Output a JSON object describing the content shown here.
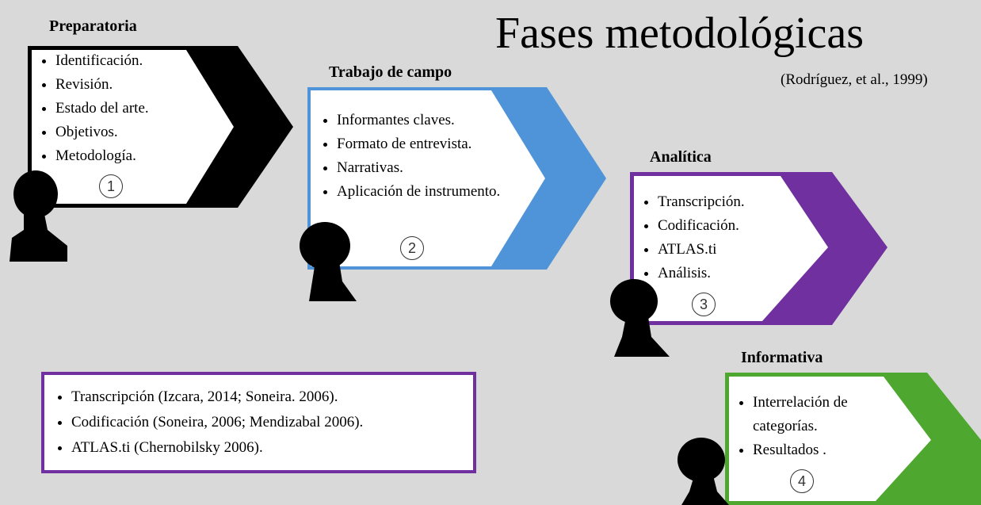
{
  "title": "Fases metodológicas",
  "subtitle": "(Rodríguez, et al., 1999)",
  "phases": [
    {
      "label": "Preparatoria",
      "items": [
        "Identificación.",
        "Revisión.",
        "Estado del arte.",
        "Objetivos.",
        "Metodología."
      ],
      "number": 1
    },
    {
      "label": "Trabajo de campo",
      "items": [
        "Informantes claves.",
        "Formato de entrevista.",
        "Narrativas.",
        "Aplicación de instrumento."
      ],
      "number": 2
    },
    {
      "label": "Analítica",
      "items": [
        "Transcripción.",
        "Codificación.",
        "ATLAS.ti",
        "Análisis."
      ],
      "number": 3
    },
    {
      "label": "Informativa",
      "items": [
        "Interrelación de categorías.",
        "Resultados ."
      ],
      "number": 4
    }
  ],
  "references": [
    "Transcripción (Izcara, 2014; Soneira. 2006).",
    "Codificación (Soneira, 2006; Mendizabal 2006).",
    "ATLAS.ti (Chernobilsky 2006)."
  ]
}
